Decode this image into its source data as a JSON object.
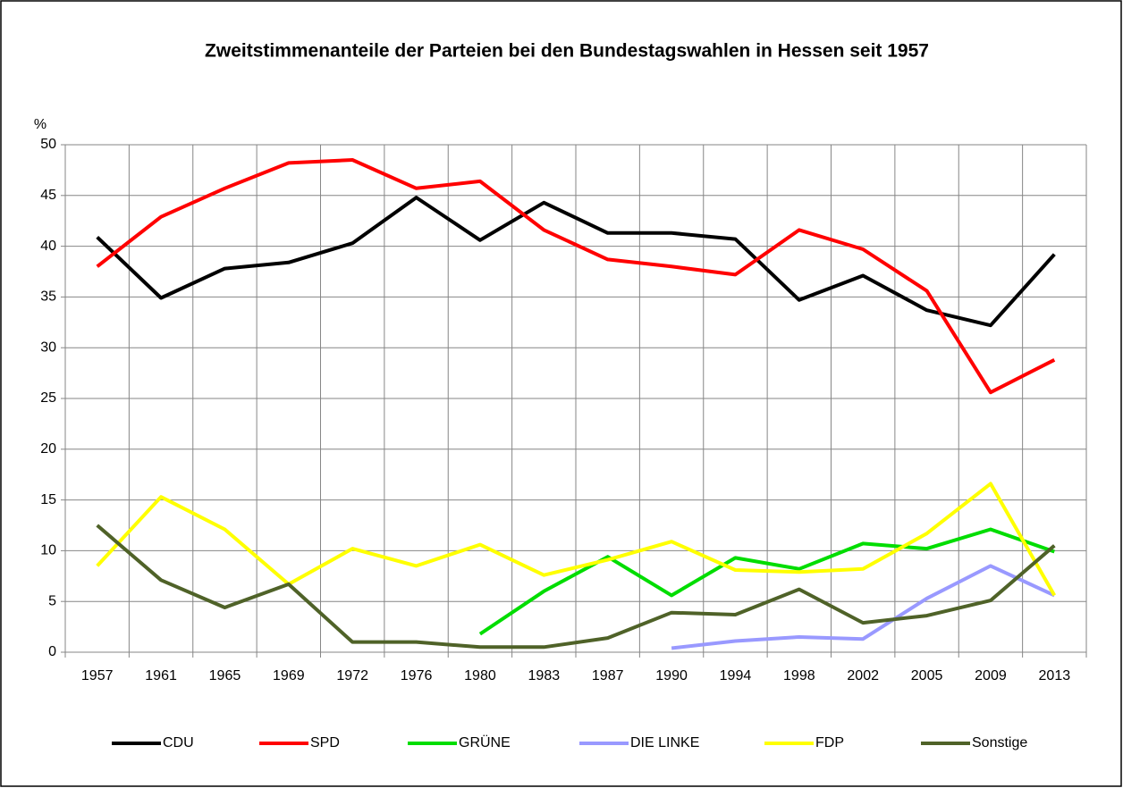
{
  "chart_data": {
    "type": "line",
    "title": "Zweitstimmenanteile der Parteien bei den Bundestagswahlen in Hessen seit 1957",
    "y_label": "%",
    "categories": [
      "1957",
      "1961",
      "1965",
      "1969",
      "1972",
      "1976",
      "1980",
      "1983",
      "1987",
      "1990",
      "1994",
      "1998",
      "2002",
      "2005",
      "2009",
      "2013"
    ],
    "ylim": [
      0,
      50
    ],
    "yticks": [
      0,
      5,
      10,
      15,
      20,
      25,
      30,
      35,
      40,
      45,
      50
    ],
    "grid": true,
    "legend": "bottom",
    "series": [
      {
        "name": "CDU",
        "color": "#000000",
        "values": [
          40.9,
          34.9,
          37.8,
          38.4,
          40.3,
          44.8,
          40.6,
          44.3,
          41.3,
          41.3,
          40.7,
          34.7,
          37.1,
          33.7,
          32.2,
          39.2
        ]
      },
      {
        "name": "SPD",
        "color": "#ff0000",
        "values": [
          38.0,
          42.9,
          45.7,
          48.2,
          48.5,
          45.7,
          46.4,
          41.6,
          38.7,
          38.0,
          37.2,
          41.6,
          39.7,
          35.6,
          25.6,
          28.8
        ]
      },
      {
        "name": "GRÜNE",
        "color": "#00dd00",
        "values": [
          null,
          null,
          null,
          null,
          null,
          null,
          1.8,
          6.0,
          9.4,
          5.6,
          9.3,
          8.2,
          10.7,
          10.2,
          12.1,
          9.9
        ]
      },
      {
        "name": "DIE LINKE",
        "color": "#9999ff",
        "values": [
          null,
          null,
          null,
          null,
          null,
          null,
          null,
          null,
          null,
          0.4,
          1.1,
          1.5,
          1.3,
          5.3,
          8.5,
          5.6
        ]
      },
      {
        "name": "FDP",
        "color": "#ffff00",
        "values": [
          8.5,
          15.3,
          12.1,
          6.7,
          10.2,
          8.5,
          10.6,
          7.6,
          9.1,
          10.9,
          8.1,
          7.9,
          8.2,
          11.7,
          16.6,
          5.6
        ]
      },
      {
        "name": "Sonstige",
        "color": "#4f6228",
        "values": [
          12.5,
          7.1,
          4.4,
          6.7,
          1.0,
          1.0,
          0.5,
          0.5,
          1.4,
          3.9,
          3.7,
          6.2,
          2.9,
          3.6,
          5.1,
          10.5
        ]
      }
    ]
  }
}
